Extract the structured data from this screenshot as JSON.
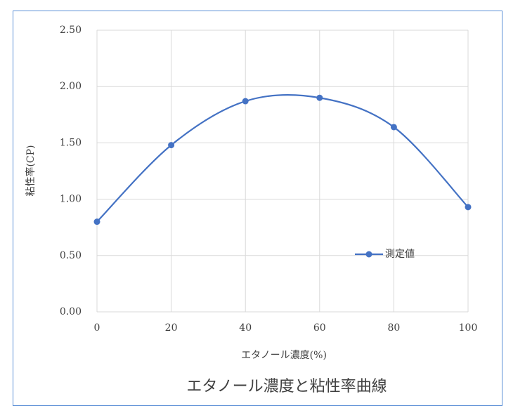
{
  "chart_data": {
    "type": "line",
    "title": "エタノール濃度と粘性率曲線",
    "x_label": "エタノール濃度(%)",
    "y_label": "粘性率(CP)",
    "x": [
      0,
      20,
      40,
      60,
      80,
      100
    ],
    "series": [
      {
        "name": "測定値",
        "color": "#4472c4",
        "values": [
          0.8,
          1.48,
          1.87,
          1.9,
          1.64,
          0.93
        ]
      }
    ],
    "xlim": [
      0,
      100
    ],
    "xticks": [
      0,
      20,
      40,
      60,
      80,
      100
    ],
    "ylim": [
      0,
      2.5
    ],
    "yticks": [
      {
        "value": 0,
        "label": "0.00"
      },
      {
        "value": 0.5,
        "label": "0.50"
      },
      {
        "value": 1,
        "label": "1.00"
      },
      {
        "value": 1.5,
        "label": "1.50"
      },
      {
        "value": 2,
        "label": "2.00"
      },
      {
        "value": 2.5,
        "label": "2.50"
      }
    ],
    "grid": true,
    "smooth": true
  }
}
